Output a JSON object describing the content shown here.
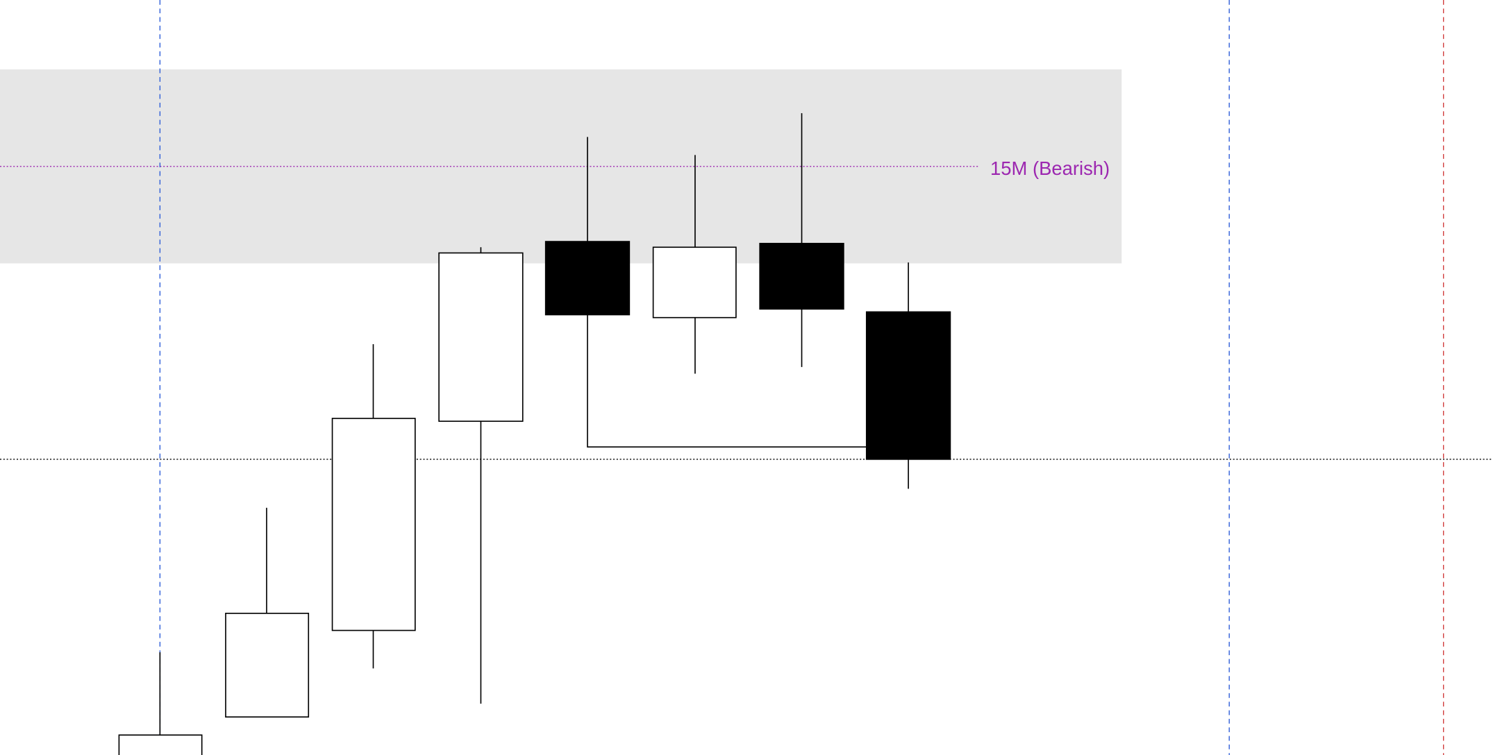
{
  "zone": {
    "label": "15M (Bearish)"
  }
}
